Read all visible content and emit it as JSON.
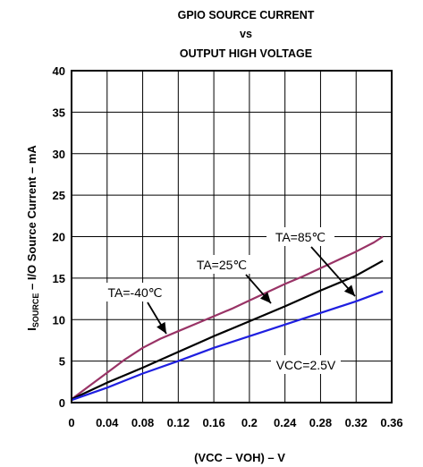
{
  "chart_data": {
    "type": "line",
    "title": [
      "GPIO SOURCE CURRENT",
      "vs",
      "OUTPUT HIGH VOLTAGE"
    ],
    "xlabel": "(VCC – VOH) – V",
    "ylabel": {
      "prefix": "I",
      "subscript": "SOURCE",
      "rest": " – I/O Source Current – mA"
    },
    "xlim": [
      0,
      0.36
    ],
    "ylim": [
      0,
      40
    ],
    "xticks": [
      "0",
      "0.04",
      "0.08",
      "0.12",
      "0.16",
      "0.2",
      "0.24",
      "0.28",
      "0.32",
      "0.36"
    ],
    "yticks": [
      "0",
      "5",
      "10",
      "15",
      "20",
      "25",
      "30",
      "35",
      "40"
    ],
    "grid": true,
    "series": [
      {
        "name": "TA=-40℃",
        "color": "#993366",
        "x": [
          0,
          0.02,
          0.04,
          0.06,
          0.08,
          0.1,
          0.12,
          0.14,
          0.16,
          0.18,
          0.2,
          0.22,
          0.24,
          0.26,
          0.28,
          0.3,
          0.32,
          0.34,
          0.35
        ],
        "y": [
          0.4,
          2.0,
          3.6,
          5.2,
          6.6,
          7.7,
          8.6,
          9.5,
          10.4,
          11.3,
          12.3,
          13.3,
          14.3,
          15.2,
          16.2,
          17.2,
          18.2,
          19.3,
          20.0
        ]
      },
      {
        "name": "TA=25℃",
        "color": "#000000",
        "x": [
          0,
          0.04,
          0.08,
          0.12,
          0.16,
          0.2,
          0.24,
          0.28,
          0.32,
          0.35
        ],
        "y": [
          0.4,
          2.4,
          4.2,
          6.1,
          8.0,
          9.8,
          11.6,
          13.5,
          15.3,
          17.1
        ]
      },
      {
        "name": "TA=85℃",
        "color": "#1f1fe0",
        "x": [
          0,
          0.04,
          0.08,
          0.12,
          0.16,
          0.2,
          0.24,
          0.28,
          0.32,
          0.35
        ],
        "y": [
          0.3,
          1.8,
          3.5,
          5.0,
          6.6,
          8.0,
          9.4,
          10.8,
          12.2,
          13.4
        ]
      }
    ],
    "annotations": [
      {
        "text": "TA=-40℃",
        "target_series": 0
      },
      {
        "text": "TA=25℃",
        "target_series": 1
      },
      {
        "text": "TA=85℃",
        "target_series": 2
      },
      {
        "text": "VCC=2.5V"
      }
    ],
    "legend": "none"
  }
}
